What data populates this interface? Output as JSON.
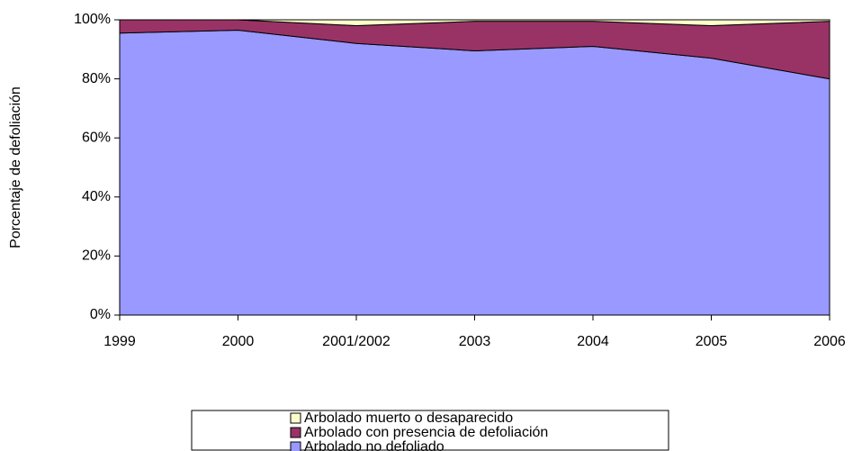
{
  "chart_data": {
    "type": "stacked_area",
    "y_label": "Porcentaje de defoliación",
    "categories": [
      "1999",
      "2000",
      "2001/2002",
      "2003",
      "2004",
      "2005",
      "2006"
    ],
    "series": [
      {
        "name": "Arbolado no defoliado",
        "color": "#9999ff",
        "values": [
          95.5,
          96.5,
          92,
          89.5,
          91,
          87,
          80
        ]
      },
      {
        "name": "Arbolado con presencia de defoliación",
        "color": "#993366",
        "values": [
          4.5,
          3.5,
          6,
          10,
          8.5,
          11,
          19.5
        ]
      },
      {
        "name": "Arbolado muerto o desaparecido",
        "color": "#ffffcc",
        "values": [
          0,
          0,
          2,
          0.5,
          0.5,
          2,
          0.5
        ]
      }
    ],
    "ylim": [
      0,
      100
    ],
    "yticks": [
      {
        "value": 0,
        "label": "0%"
      },
      {
        "value": 20,
        "label": "20%"
      },
      {
        "value": 40,
        "label": "40%"
      },
      {
        "value": 60,
        "label": "60%"
      },
      {
        "value": 80,
        "label": "80%"
      },
      {
        "value": 100,
        "label": "100%"
      }
    ],
    "grid": false
  }
}
